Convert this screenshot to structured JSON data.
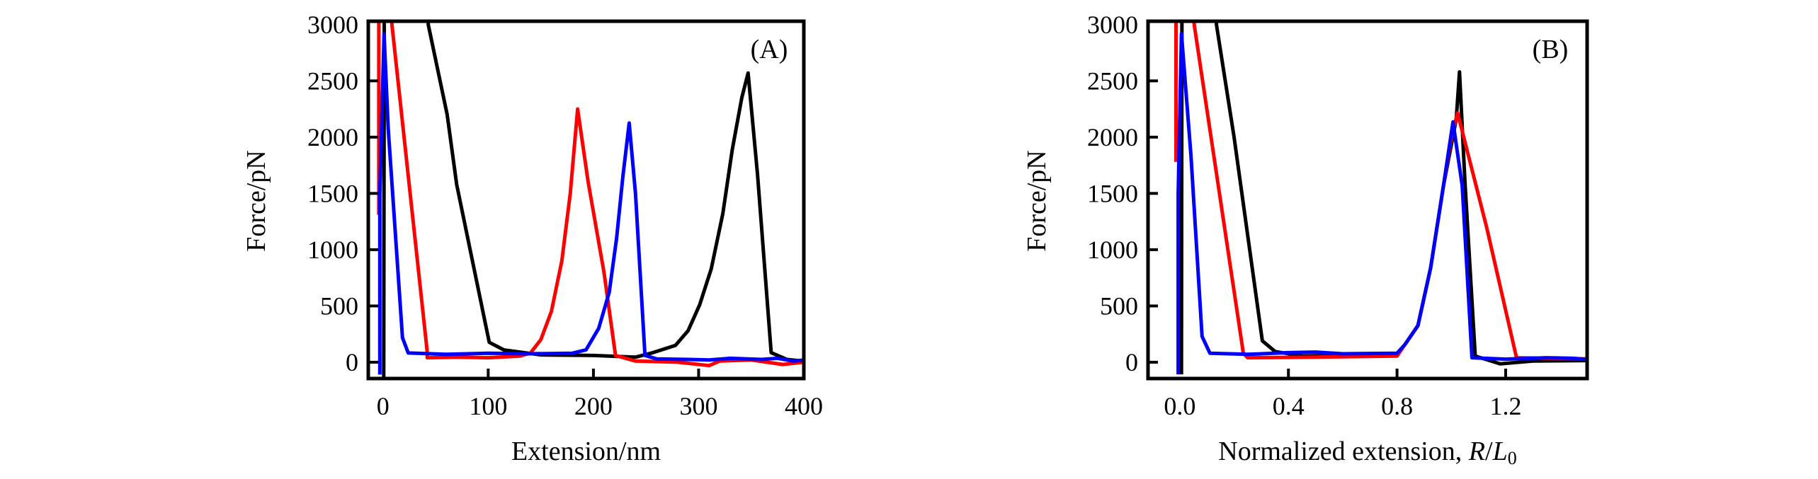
{
  "chart_data": [
    {
      "type": "line",
      "panel_label": "(A)",
      "xlabel": "Extension/nm",
      "ylabel": "Force/pN",
      "xlim": [
        -14,
        400
      ],
      "ylim": [
        -145,
        3030
      ],
      "xticks": [
        0,
        100,
        200,
        300,
        400
      ],
      "xtick_labels": [
        "0",
        "100",
        "200",
        "300",
        "400"
      ],
      "yticks": [
        0,
        500,
        1000,
        1500,
        2000,
        2500,
        3000
      ],
      "ytick_labels": [
        "0",
        "500",
        "1000",
        "1500",
        "2000",
        "2500",
        "3000"
      ],
      "grid": false,
      "series": [
        {
          "color": "#000000",
          "points": [
            [
              0.7,
              -140
            ],
            [
              1.2,
              3200
            ],
            [
              43,
              3200
            ],
            [
              43,
              3000
            ],
            [
              61,
              2200
            ],
            [
              70,
              1580
            ],
            [
              101,
              177
            ],
            [
              115,
              109
            ],
            [
              150,
              65
            ],
            [
              200,
              60
            ],
            [
              240,
              45
            ],
            [
              255,
              81
            ],
            [
              278,
              150
            ],
            [
              290,
              280
            ],
            [
              301,
              510
            ],
            [
              312,
              830
            ],
            [
              323,
              1320
            ],
            [
              332,
              1890
            ],
            [
              341,
              2350
            ],
            [
              347,
              2570
            ],
            [
              356,
              1670
            ],
            [
              369,
              85
            ],
            [
              384,
              25
            ],
            [
              394,
              15
            ],
            [
              400,
              15
            ]
          ]
        },
        {
          "color": "#ff0000",
          "points": [
            [
              -4,
              1310
            ],
            [
              -4,
              3200
            ],
            [
              8.5,
              3200
            ],
            [
              8.5,
              3000
            ],
            [
              42,
              95
            ],
            [
              42,
              40
            ],
            [
              70,
              45
            ],
            [
              100,
              40
            ],
            [
              130,
              55
            ],
            [
              140,
              80
            ],
            [
              150,
              200
            ],
            [
              160,
              450
            ],
            [
              170,
              900
            ],
            [
              178,
              1500
            ],
            [
              185,
              2250
            ],
            [
              195,
              1600
            ],
            [
              210,
              800
            ],
            [
              221,
              60
            ],
            [
              240,
              10
            ],
            [
              280,
              0
            ],
            [
              310,
              -30
            ],
            [
              320,
              10
            ],
            [
              350,
              20
            ],
            [
              380,
              -20
            ],
            [
              400,
              0
            ]
          ]
        },
        {
          "color": "#0000ff",
          "points": [
            [
              -3,
              -110
            ],
            [
              -3,
              1500
            ],
            [
              1,
              2915
            ],
            [
              5,
              2070
            ],
            [
              18.5,
              218
            ],
            [
              24,
              82
            ],
            [
              60,
              70
            ],
            [
              100,
              80
            ],
            [
              140,
              75
            ],
            [
              180,
              80
            ],
            [
              193,
              110
            ],
            [
              205,
              300
            ],
            [
              215,
              620
            ],
            [
              222,
              1100
            ],
            [
              228,
              1650
            ],
            [
              234,
              2125
            ],
            [
              240,
              1500
            ],
            [
              249,
              60
            ],
            [
              260,
              30
            ],
            [
              290,
              25
            ],
            [
              310,
              20
            ],
            [
              330,
              35
            ],
            [
              360,
              25
            ],
            [
              375,
              35
            ],
            [
              390,
              10
            ],
            [
              400,
              20
            ]
          ]
        }
      ]
    },
    {
      "type": "line",
      "panel_label": "(B)",
      "xlabel": "Normalized extension, ",
      "xlabel_italic_1": "R",
      "xlabel_slash": "/",
      "xlabel_italic_2": "L",
      "xlabel_subscript": "0",
      "ylabel": "Force/pN",
      "xlim": [
        -0.117,
        1.5
      ],
      "ylim": [
        -145,
        3030
      ],
      "xticks": [
        0.0,
        0.4,
        0.8,
        1.2
      ],
      "xtick_labels": [
        "0.0",
        "0.4",
        "0.8",
        "1.2"
      ],
      "yticks": [
        0,
        500,
        1000,
        1500,
        2000,
        2500,
        3000
      ],
      "ytick_labels": [
        "0",
        "500",
        "1000",
        "1500",
        "2000",
        "2500",
        "3000"
      ],
      "grid": false,
      "series": [
        {
          "color": "#000000",
          "points": [
            [
              0.006,
              -108
            ],
            [
              0.008,
              3200
            ],
            [
              0.135,
              3200
            ],
            [
              0.135,
              3000
            ],
            [
              0.2,
              2000
            ],
            [
              0.304,
              190
            ],
            [
              0.351,
              95
            ],
            [
              0.45,
              55
            ],
            [
              0.6,
              60
            ],
            [
              0.8,
              65
            ],
            [
              0.83,
              160
            ],
            [
              0.877,
              325
            ],
            [
              0.924,
              840
            ],
            [
              0.971,
              1570
            ],
            [
              1.018,
              2160
            ],
            [
              1.03,
              2580
            ],
            [
              1.05,
              1600
            ],
            [
              1.088,
              55
            ],
            [
              1.18,
              -15
            ],
            [
              1.3,
              10
            ],
            [
              1.5,
              15
            ]
          ]
        },
        {
          "color": "#ff0000",
          "points": [
            [
              -0.014,
              1780
            ],
            [
              -0.014,
              3200
            ],
            [
              0.053,
              3200
            ],
            [
              0.053,
              3000
            ],
            [
              0.234,
              80
            ],
            [
              0.25,
              40
            ],
            [
              0.5,
              45
            ],
            [
              0.8,
              55
            ],
            [
              0.83,
              160
            ],
            [
              0.877,
              325
            ],
            [
              0.924,
              840
            ],
            [
              0.971,
              1570
            ],
            [
              1.0,
              2000
            ],
            [
              1.023,
              2215
            ],
            [
              1.13,
              1200
            ],
            [
              1.24,
              40
            ],
            [
              1.35,
              35
            ],
            [
              1.5,
              30
            ]
          ]
        },
        {
          "color": "#0000ff",
          "points": [
            [
              -0.006,
              -108
            ],
            [
              -0.006,
              1500
            ],
            [
              0.006,
              2920
            ],
            [
              0.041,
              1840
            ],
            [
              0.082,
              230
            ],
            [
              0.111,
              80
            ],
            [
              0.25,
              70
            ],
            [
              0.4,
              85
            ],
            [
              0.5,
              90
            ],
            [
              0.6,
              75
            ],
            [
              0.8,
              80
            ],
            [
              0.83,
              160
            ],
            [
              0.877,
              325
            ],
            [
              0.924,
              840
            ],
            [
              0.971,
              1570
            ],
            [
              1.006,
              2135
            ],
            [
              1.04,
              1570
            ],
            [
              1.076,
              40
            ],
            [
              1.2,
              27
            ],
            [
              1.35,
              40
            ],
            [
              1.45,
              35
            ],
            [
              1.5,
              25
            ]
          ]
        }
      ]
    }
  ]
}
